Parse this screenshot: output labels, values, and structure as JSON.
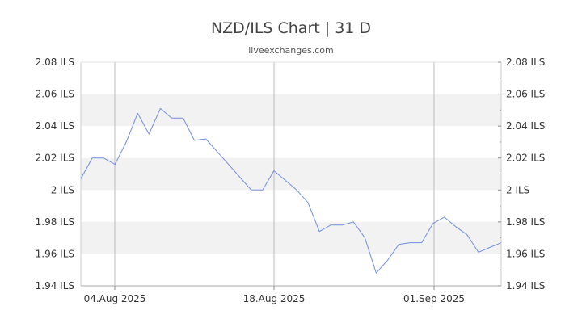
{
  "chart": {
    "title": "NZD/ILS Chart | 31 D",
    "subtitle": "liveexchanges.com"
  },
  "chart_data": {
    "type": "line",
    "title": "NZD/ILS Chart | 31 D",
    "subtitle": "liveexchanges.com",
    "xlabel": "",
    "ylabel": "",
    "ylim": [
      1.94,
      2.08
    ],
    "y_ticks": [
      {
        "value": 2.08,
        "label": "2.08 ILS"
      },
      {
        "value": 2.06,
        "label": "2.06 ILS"
      },
      {
        "value": 2.04,
        "label": "2.04 ILS"
      },
      {
        "value": 2.02,
        "label": "2.02 ILS"
      },
      {
        "value": 2.0,
        "label": "2 ILS"
      },
      {
        "value": 1.98,
        "label": "1.98 ILS"
      },
      {
        "value": 1.96,
        "label": "1.96 ILS"
      },
      {
        "value": 1.94,
        "label": "1.94 ILS"
      }
    ],
    "x_ticks": [
      "04.Aug 2025",
      "18.Aug 2025",
      "01.Sep 2025"
    ],
    "grid": true,
    "line_color": "#6f8fdc",
    "band_color": "#f2f2f2",
    "series": [
      {
        "values": [
          2.007,
          2.02,
          2.02,
          2.016,
          2.03,
          2.048,
          2.035,
          2.051,
          2.045,
          2.045,
          2.031,
          2.032,
          2.024,
          2.016,
          2.008,
          2.0,
          2.0,
          2.012,
          2.006,
          2.0,
          1.992,
          1.974,
          1.978,
          1.978,
          1.98,
          1.97,
          1.948,
          1.956,
          1.966,
          1.967,
          1.967,
          1.979,
          1.983,
          1.977,
          1.972,
          1.961,
          1.964,
          1.967
        ]
      }
    ]
  }
}
